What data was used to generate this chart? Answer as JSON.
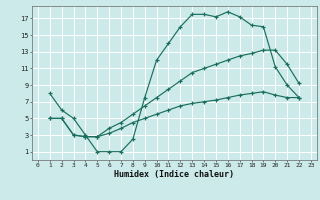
{
  "xlabel": "Humidex (Indice chaleur)",
  "bg_color": "#cceaea",
  "grid_color": "#ffffff",
  "line_color": "#1a6e5e",
  "xlim": [
    -0.5,
    23.5
  ],
  "ylim": [
    0,
    18.5
  ],
  "xticks": [
    0,
    1,
    2,
    3,
    4,
    5,
    6,
    7,
    8,
    9,
    10,
    11,
    12,
    13,
    14,
    15,
    16,
    17,
    18,
    19,
    20,
    21,
    22,
    23
  ],
  "yticks": [
    1,
    3,
    5,
    7,
    9,
    11,
    13,
    15,
    17
  ],
  "line1_x": [
    1,
    2,
    3,
    4,
    5,
    6,
    7,
    8,
    9,
    10,
    11,
    12,
    13,
    14,
    15,
    16,
    17,
    18,
    19,
    20,
    21,
    22
  ],
  "line1_y": [
    8,
    6,
    5,
    3,
    1,
    1,
    1,
    2.5,
    7.5,
    12,
    14,
    16,
    17.5,
    17.5,
    17.2,
    17.8,
    17.2,
    16.2,
    16.0,
    11.2,
    9.0,
    7.5
  ],
  "line2_x": [
    1,
    2,
    3,
    4,
    5,
    6,
    7,
    8,
    9,
    10,
    11,
    12,
    13,
    14,
    15,
    16,
    17,
    18,
    19,
    20,
    21,
    22
  ],
  "line2_y": [
    5.0,
    5.0,
    3.0,
    2.8,
    2.8,
    3.8,
    4.5,
    5.5,
    6.5,
    7.5,
    8.5,
    9.5,
    10.5,
    11.0,
    11.5,
    12.0,
    12.5,
    12.8,
    13.2,
    13.2,
    11.5,
    9.2
  ],
  "line3_x": [
    1,
    2,
    3,
    4,
    5,
    6,
    7,
    8,
    9,
    10,
    11,
    12,
    13,
    14,
    15,
    16,
    17,
    18,
    19,
    20,
    21,
    22
  ],
  "line3_y": [
    5.0,
    5.0,
    3.0,
    2.8,
    2.8,
    3.2,
    3.8,
    4.5,
    5.0,
    5.5,
    6.0,
    6.5,
    6.8,
    7.0,
    7.2,
    7.5,
    7.8,
    8.0,
    8.2,
    7.8,
    7.5,
    7.5
  ]
}
